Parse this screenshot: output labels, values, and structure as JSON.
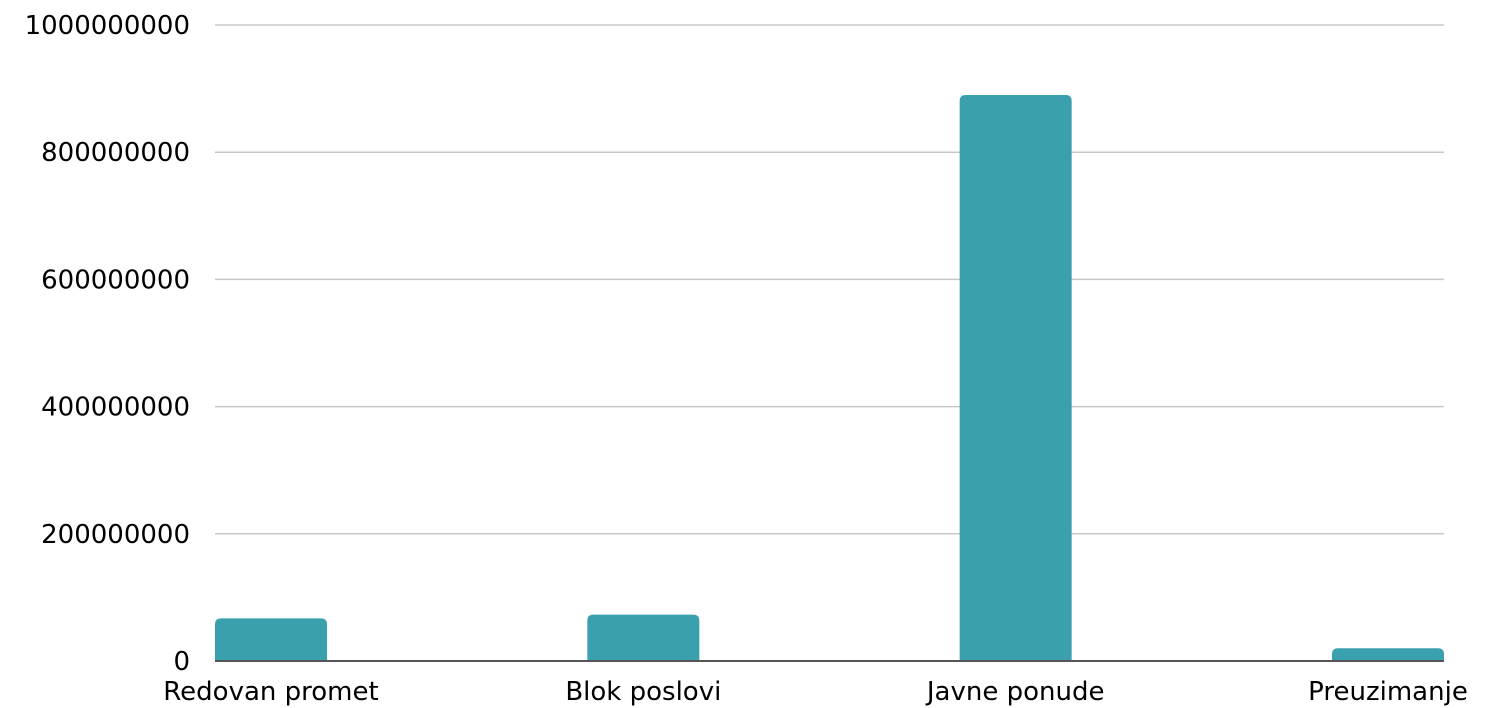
{
  "colors": {
    "bar": "#3aa0ad",
    "grid": "#c8c8c8",
    "axis": "#555555",
    "text": "#000000"
  },
  "chart_data": {
    "type": "bar",
    "categories": [
      "Redovan promet",
      "Blok poslovi",
      "Javne ponude",
      "Preuzimanje"
    ],
    "values": [
      67000000,
      73000000,
      890000000,
      20000000
    ],
    "title": "",
    "xlabel": "",
    "ylabel": "",
    "ylim": [
      0,
      1000000000
    ],
    "yticks": [
      "0",
      "200000000",
      "400000000",
      "600000000",
      "800000000",
      "1000000000"
    ],
    "grid": true,
    "legend": "none"
  }
}
